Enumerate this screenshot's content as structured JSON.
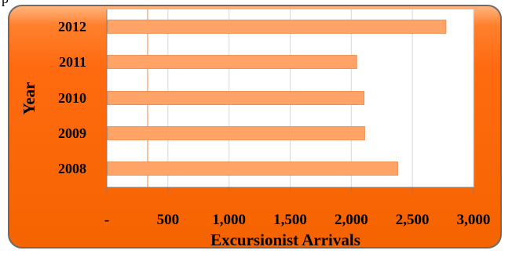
{
  "clipped_text": "p",
  "chart_data": {
    "type": "bar",
    "orientation": "horizontal",
    "categories": [
      "2012",
      "2011",
      "2010",
      "2009",
      "2008"
    ],
    "values": [
      2775,
      2045,
      2105,
      2110,
      2380
    ],
    "xlabel": "Excursionist Arrivals",
    "ylabel": "Year",
    "xlim": [
      0,
      3000
    ],
    "xticks": [
      0,
      500,
      1000,
      1500,
      2000,
      2500,
      3000
    ],
    "xtick_labels": [
      "-",
      "500",
      "1,000",
      "1,500",
      "2,000",
      "2,500",
      "3,000"
    ],
    "grid": "vertical",
    "legend": "none",
    "colors": {
      "bar": "#ffa366",
      "bar_edge": "#e8874a",
      "plot_area": "#ffffff",
      "background": "#ff6a10",
      "gridline": "#d9d9d9",
      "marker_line": "#e8874a"
    }
  }
}
